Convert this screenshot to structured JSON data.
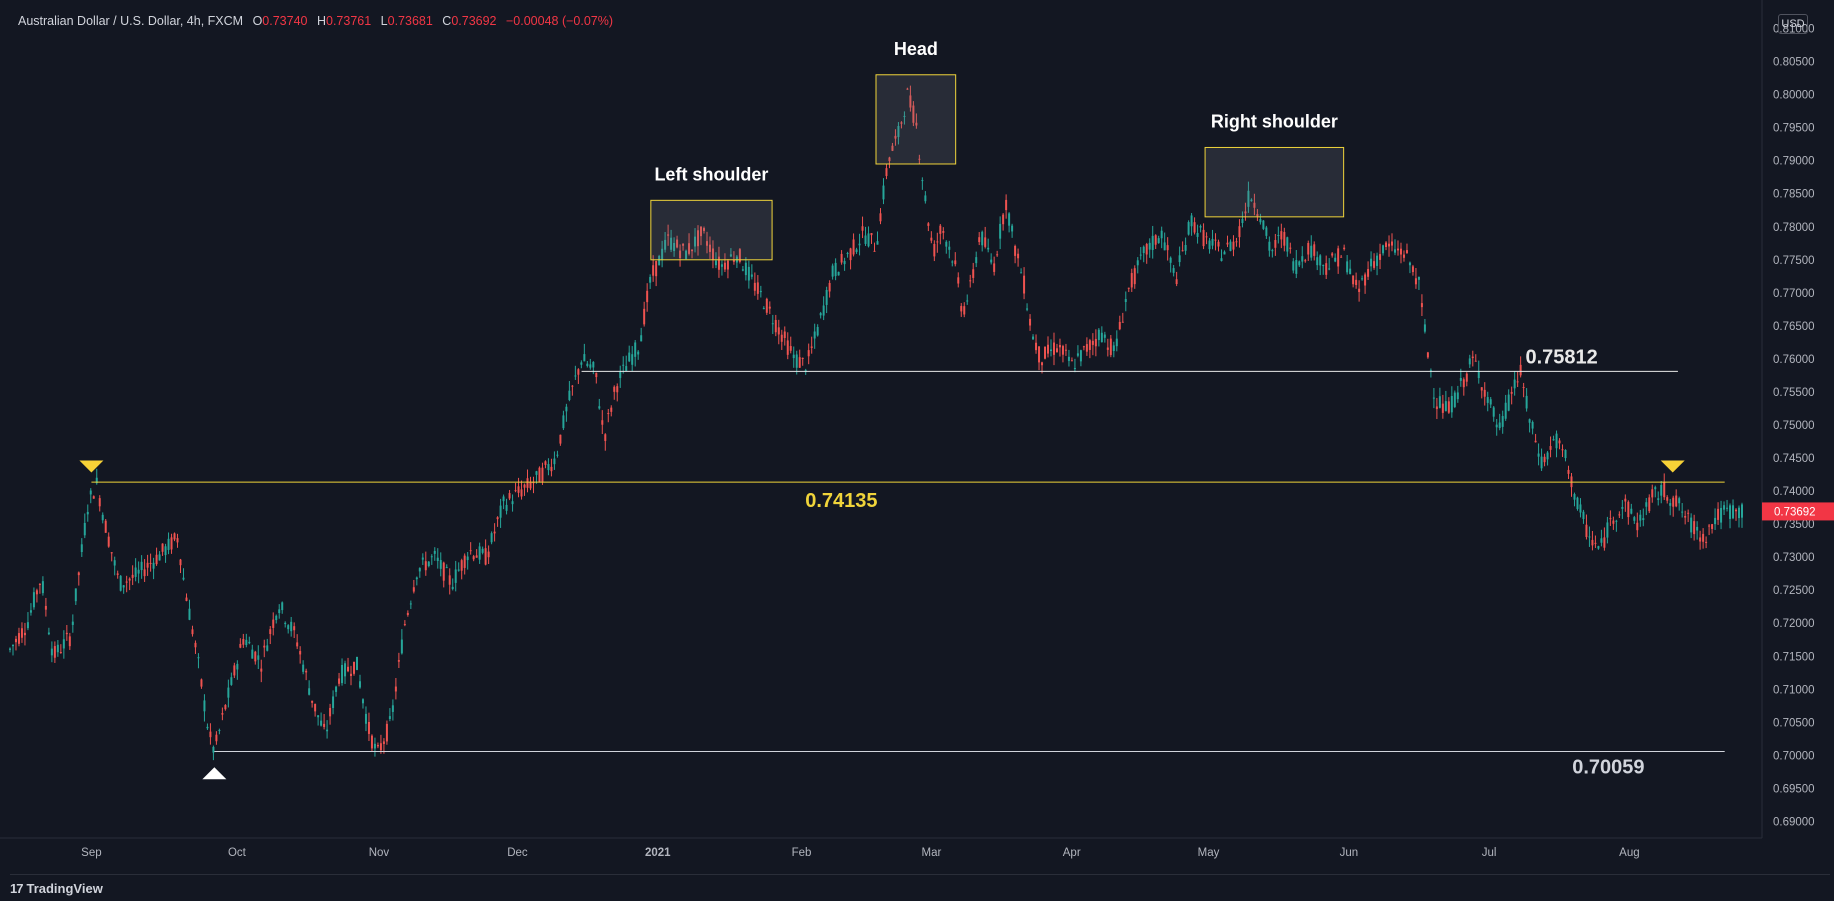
{
  "header": {
    "symbol": "Australian Dollar / U.S. Dollar, 4h, FXCM",
    "o_label": "O",
    "o_value": "0.73740",
    "h_label": "H",
    "h_value": "0.73761",
    "l_label": "L",
    "l_value": "0.73681",
    "c_label": "C",
    "c_value": "0.73692",
    "change": "−0.00048 (−0.07%)"
  },
  "currency_badge": "USD",
  "footer": {
    "logo_mark": "17",
    "brand": "TradingView"
  },
  "colors": {
    "background": "#131722",
    "up_candle": "#26a69a",
    "down_candle": "#ef5350",
    "highlight_line": "#f0d43a",
    "support_line": "#d1d4dc",
    "price_badge": "#f23645"
  },
  "chart_data": {
    "type": "candlestick",
    "timeframe": "4h",
    "ylim": [
      0.6875,
      0.8125
    ],
    "y_ticks": [
      "0.81000",
      "0.80500",
      "0.80000",
      "0.79500",
      "0.79000",
      "0.78500",
      "0.78000",
      "0.77500",
      "0.77000",
      "0.76500",
      "0.76000",
      "0.75500",
      "0.75000",
      "0.74500",
      "0.74000",
      "0.73500",
      "0.73000",
      "0.72500",
      "0.72000",
      "0.71500",
      "0.71000",
      "0.70500",
      "0.70000",
      "0.69500",
      "0.69000"
    ],
    "x_ticks": [
      {
        "label": "Sep",
        "t": 0.047
      },
      {
        "label": "Oct",
        "t": 0.131
      },
      {
        "label": "Nov",
        "t": 0.213
      },
      {
        "label": "Dec",
        "t": 0.293
      },
      {
        "label": "2021",
        "t": 0.374
      },
      {
        "label": "Feb",
        "t": 0.457
      },
      {
        "label": "Mar",
        "t": 0.532
      },
      {
        "label": "Apr",
        "t": 0.613
      },
      {
        "label": "May",
        "t": 0.692
      },
      {
        "label": "Jun",
        "t": 0.773
      },
      {
        "label": "Jul",
        "t": 0.854
      },
      {
        "label": "Aug",
        "t": 0.935
      }
    ],
    "price_path": [
      [
        0.0,
        0.716
      ],
      [
        0.01,
        0.72
      ],
      [
        0.018,
        0.727
      ],
      [
        0.025,
        0.715
      ],
      [
        0.035,
        0.718
      ],
      [
        0.045,
        0.738
      ],
      [
        0.05,
        0.7412
      ],
      [
        0.055,
        0.735
      ],
      [
        0.063,
        0.726
      ],
      [
        0.072,
        0.727
      ],
      [
        0.085,
        0.73
      ],
      [
        0.097,
        0.733
      ],
      [
        0.1,
        0.727
      ],
      [
        0.108,
        0.715
      ],
      [
        0.115,
        0.703
      ],
      [
        0.118,
        0.7006
      ],
      [
        0.125,
        0.708
      ],
      [
        0.135,
        0.718
      ],
      [
        0.145,
        0.714
      ],
      [
        0.155,
        0.723
      ],
      [
        0.165,
        0.718
      ],
      [
        0.175,
        0.708
      ],
      [
        0.182,
        0.703
      ],
      [
        0.19,
        0.712
      ],
      [
        0.2,
        0.714
      ],
      [
        0.207,
        0.704
      ],
      [
        0.212,
        0.7
      ],
      [
        0.22,
        0.705
      ],
      [
        0.228,
        0.72
      ],
      [
        0.235,
        0.728
      ],
      [
        0.245,
        0.73
      ],
      [
        0.255,
        0.726
      ],
      [
        0.265,
        0.731
      ],
      [
        0.275,
        0.73
      ],
      [
        0.285,
        0.738
      ],
      [
        0.295,
        0.74
      ],
      [
        0.305,
        0.742
      ],
      [
        0.315,
        0.745
      ],
      [
        0.322,
        0.753
      ],
      [
        0.33,
        0.76
      ],
      [
        0.338,
        0.758
      ],
      [
        0.343,
        0.748
      ],
      [
        0.35,
        0.756
      ],
      [
        0.358,
        0.76
      ],
      [
        0.363,
        0.762
      ],
      [
        0.37,
        0.772
      ],
      [
        0.38,
        0.778
      ],
      [
        0.39,
        0.776
      ],
      [
        0.4,
        0.779
      ],
      [
        0.41,
        0.774
      ],
      [
        0.42,
        0.776
      ],
      [
        0.428,
        0.772
      ],
      [
        0.437,
        0.768
      ],
      [
        0.445,
        0.764
      ],
      [
        0.453,
        0.76
      ],
      [
        0.46,
        0.759
      ],
      [
        0.467,
        0.765
      ],
      [
        0.475,
        0.773
      ],
      [
        0.485,
        0.776
      ],
      [
        0.493,
        0.779
      ],
      [
        0.5,
        0.777
      ],
      [
        0.507,
        0.79
      ],
      [
        0.513,
        0.794
      ],
      [
        0.518,
        0.8
      ],
      [
        0.523,
        0.796
      ],
      [
        0.528,
        0.785
      ],
      [
        0.533,
        0.776
      ],
      [
        0.538,
        0.78
      ],
      [
        0.545,
        0.775
      ],
      [
        0.55,
        0.767
      ],
      [
        0.555,
        0.771
      ],
      [
        0.56,
        0.779
      ],
      [
        0.568,
        0.774
      ],
      [
        0.575,
        0.784
      ],
      [
        0.58,
        0.777
      ],
      [
        0.585,
        0.772
      ],
      [
        0.59,
        0.764
      ],
      [
        0.595,
        0.76
      ],
      [
        0.605,
        0.762
      ],
      [
        0.613,
        0.759
      ],
      [
        0.62,
        0.761
      ],
      [
        0.63,
        0.764
      ],
      [
        0.638,
        0.761
      ],
      [
        0.645,
        0.77
      ],
      [
        0.655,
        0.776
      ],
      [
        0.665,
        0.779
      ],
      [
        0.673,
        0.772
      ],
      [
        0.682,
        0.781
      ],
      [
        0.69,
        0.778
      ],
      [
        0.7,
        0.776
      ],
      [
        0.708,
        0.778
      ],
      [
        0.716,
        0.785
      ],
      [
        0.722,
        0.782
      ],
      [
        0.728,
        0.776
      ],
      [
        0.735,
        0.779
      ],
      [
        0.742,
        0.774
      ],
      [
        0.75,
        0.777
      ],
      [
        0.76,
        0.774
      ],
      [
        0.77,
        0.776
      ],
      [
        0.778,
        0.77
      ],
      [
        0.785,
        0.774
      ],
      [
        0.795,
        0.777
      ],
      [
        0.805,
        0.776
      ],
      [
        0.813,
        0.772
      ],
      [
        0.818,
        0.762
      ],
      [
        0.823,
        0.754
      ],
      [
        0.83,
        0.752
      ],
      [
        0.838,
        0.756
      ],
      [
        0.845,
        0.76
      ],
      [
        0.852,
        0.755
      ],
      [
        0.86,
        0.749
      ],
      [
        0.867,
        0.755
      ],
      [
        0.872,
        0.758
      ],
      [
        0.878,
        0.75
      ],
      [
        0.885,
        0.744
      ],
      [
        0.892,
        0.748
      ],
      [
        0.898,
        0.745
      ],
      [
        0.905,
        0.738
      ],
      [
        0.912,
        0.733
      ],
      [
        0.918,
        0.731
      ],
      [
        0.925,
        0.736
      ],
      [
        0.932,
        0.738
      ],
      [
        0.94,
        0.735
      ],
      [
        0.948,
        0.739
      ],
      [
        0.955,
        0.74
      ],
      [
        0.963,
        0.738
      ],
      [
        0.97,
        0.735
      ],
      [
        0.978,
        0.733
      ],
      [
        0.985,
        0.736
      ],
      [
        0.992,
        0.737
      ],
      [
        1.0,
        0.7369
      ]
    ],
    "levels": [
      {
        "label": "0.75812",
        "price": 0.75812,
        "color": "#e8e8e8",
        "t_start": 0.33,
        "t_end": 0.963
      },
      {
        "label": "0.74135",
        "price": 0.74135,
        "color": "#f0d43a",
        "t_start": 0.047,
        "t_end": 0.99
      },
      {
        "label": "0.70059",
        "price": 0.70059,
        "color": "#d1d4dc",
        "t_start": 0.118,
        "t_end": 0.99
      }
    ],
    "annotations": [
      {
        "label": "Left shoulder",
        "t_start": 0.37,
        "t_end": 0.44,
        "p_top": 0.784,
        "p_bottom": 0.775
      },
      {
        "label": "Head",
        "t_start": 0.5,
        "t_end": 0.546,
        "p_top": 0.803,
        "p_bottom": 0.7895
      },
      {
        "label": "Right shoulder",
        "t_start": 0.69,
        "t_end": 0.77,
        "p_top": 0.792,
        "p_bottom": 0.7815
      }
    ],
    "markers": [
      {
        "shape": "down",
        "t": 0.047,
        "price": 0.7425,
        "color": "#f7d237"
      },
      {
        "shape": "up",
        "t": 0.118,
        "price": 0.6985,
        "color": "#ffffff"
      },
      {
        "shape": "down",
        "t": 0.96,
        "price": 0.7425,
        "color": "#f7d237"
      }
    ],
    "last_price": {
      "label": "0.73692",
      "price": 0.73692
    }
  }
}
